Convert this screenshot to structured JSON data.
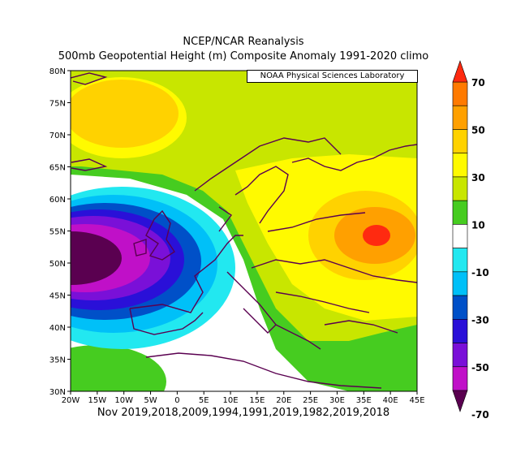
{
  "title_line1": "NCEP/NCAR Reanalysis",
  "title_line2": "500mb Geopotential Height (m) Composite Anomaly 1991-2020 climo",
  "credit": "NOAA Physical Sciences Laboratory",
  "x_ticks": [
    "20W",
    "15W",
    "10W",
    "5W",
    "0",
    "5E",
    "10E",
    "15E",
    "20E",
    "25E",
    "30E",
    "35E",
    "40E",
    "45E"
  ],
  "y_ticks": [
    "30N",
    "35N",
    "40N",
    "45N",
    "50N",
    "55N",
    "60N",
    "65N",
    "70N",
    "75N",
    "80N"
  ],
  "date_label": "Nov 2019,2018,2009,1994,1991,2019,1982,2019,2018",
  "colorbar_labels": [
    "70",
    "50",
    "30",
    "10",
    "-10",
    "-30",
    "-50",
    "-70"
  ],
  "colors": {
    "c70": "#ff2a10",
    "c60": "#ff7a00",
    "c50": "#ffa000",
    "c40": "#ffd200",
    "c30": "#fffa00",
    "c20": "#c8e600",
    "c10": "#46cc20",
    "c0": "#ffffff",
    "cm10": "#22e8f0",
    "cm20": "#00c0f8",
    "cm30": "#0050c8",
    "cm40": "#2a10d8",
    "cm50": "#7a10d8",
    "cm60": "#c010c8",
    "cm70": "#5a0050",
    "coast": "#5a0050"
  }
}
